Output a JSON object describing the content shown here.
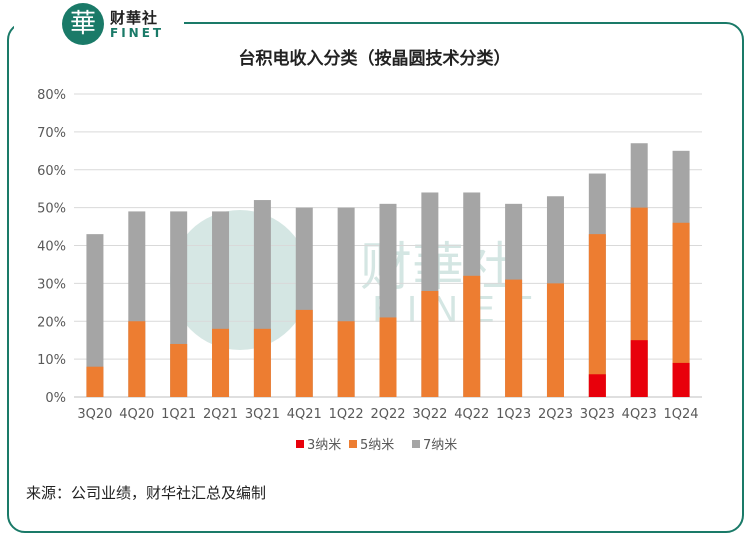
{
  "logo": {
    "badge": "華",
    "name_cn": "财華社",
    "name_en": "FINET"
  },
  "watermark": {
    "cn": "财華社",
    "en": "FINET"
  },
  "chart_data": {
    "type": "bar",
    "stacking": "overlay",
    "title": "台积电收入分类（按晶圆技术分类）",
    "categories": [
      "3Q20",
      "4Q20",
      "1Q21",
      "2Q21",
      "3Q21",
      "4Q21",
      "1Q22",
      "2Q22",
      "3Q22",
      "4Q22",
      "1Q23",
      "2Q23",
      "3Q23",
      "4Q23",
      "1Q24"
    ],
    "series": [
      {
        "name": "3纳米",
        "color": "#e8000b",
        "values": [
          0,
          0,
          0,
          0,
          0,
          0,
          0,
          0,
          0,
          0,
          0,
          0,
          6,
          15,
          9
        ]
      },
      {
        "name": "5纳米",
        "color": "#ed7d31",
        "values": [
          8,
          20,
          14,
          18,
          18,
          23,
          20,
          21,
          28,
          32,
          31,
          30,
          43,
          50,
          46
        ]
      },
      {
        "name": "7纳米",
        "color": "#a5a5a5",
        "values": [
          43,
          49,
          49,
          49,
          52,
          50,
          50,
          51,
          54,
          54,
          51,
          53,
          59,
          67,
          65
        ]
      }
    ],
    "ylim": [
      0,
      80
    ],
    "yticks": [
      "0%",
      "10%",
      "20%",
      "30%",
      "40%",
      "50%",
      "60%",
      "70%",
      "80%"
    ],
    "xlabel": "",
    "ylabel": "",
    "legend": "bottom",
    "grid": true
  },
  "source": "来源：公司业绩，财华社汇总及编制"
}
